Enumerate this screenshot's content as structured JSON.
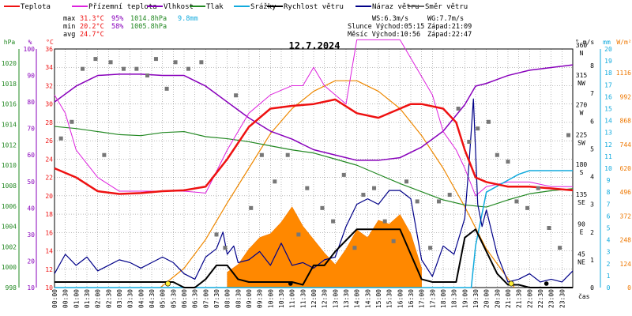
{
  "chart_data": {
    "type": "line",
    "title": "12.7.2024",
    "legend": [
      {
        "label": "Teplota",
        "color": "#ee1111"
      },
      {
        "label": "Přízemní teplota",
        "color": "#dd22dd"
      },
      {
        "label": "Vlhkost",
        "color": "#8800bb"
      },
      {
        "label": "Tlak",
        "color": "#228822"
      },
      {
        "label": "Srážky",
        "color": "#11aadd"
      },
      {
        "label": "Rychlost větru",
        "color": "#000000"
      },
      {
        "label": "Náraz větru",
        "color": "#000088"
      },
      {
        "label": "Směr větru",
        "color": "#666666"
      }
    ],
    "stats": {
      "max_label": "max",
      "max_temp": "31.3°C",
      "max_hum": "95%",
      "max_press": "1014.8hPa",
      "max_rain": "9.8mm",
      "min_label": "min",
      "min_temp": "20.2°C",
      "min_hum": "58%",
      "min_press": "1005.8hPa",
      "avg_label": "avg",
      "avg_temp": "24.7°C",
      "ws": "WS:6.3m/s",
      "wg": "WG:7.7m/s",
      "slunce": "Slunce Východ:05:15",
      "slunce_z": "Západ:21:09",
      "mesic": "Měsíc  Východ:10:56",
      "mesic_z": "Západ:22:47"
    },
    "axes": {
      "hpa": {
        "unit": "hPa",
        "color": "#228822",
        "ticks": [
          "1020",
          "1018",
          "1016",
          "1014",
          "1012",
          "1010",
          "1008",
          "1006",
          "1004",
          "1002",
          "1000",
          "998"
        ],
        "range": [
          998,
          1021.4
        ]
      },
      "pct": {
        "unit": "%",
        "color": "#8800bb",
        "ticks": [
          "100",
          "90",
          "80",
          "70",
          "60",
          "50",
          "40",
          "30",
          "20",
          "10"
        ],
        "range": [
          10,
          100
        ]
      },
      "temp": {
        "unit": "°C",
        "color": "#ee1111",
        "ticks": [
          "36",
          "34",
          "32",
          "30",
          "28",
          "26",
          "24",
          "22",
          "20",
          "18",
          "16",
          "14",
          "12",
          "10"
        ],
        "range": [
          10,
          36
        ]
      },
      "dir": {
        "unit": "°",
        "ticks": [
          "360",
          "N",
          "315",
          "NW",
          "270",
          "W",
          "225",
          "SW",
          "180",
          "S",
          "135",
          "SE",
          "90",
          "E",
          "45",
          "NE"
        ],
        "range": [
          0,
          360
        ]
      },
      "ms": {
        "unit": "m/s",
        "ticks": [
          "8",
          "7",
          "6",
          "5",
          "4",
          "3",
          "2",
          "1",
          "0"
        ],
        "range": [
          0,
          8.6
        ]
      },
      "mm": {
        "unit": "mm",
        "color": "#11aadd",
        "ticks": [
          "20",
          "19",
          "18",
          "17",
          "16",
          "15",
          "14",
          "13",
          "12",
          "11",
          "10",
          "9",
          "8",
          "7",
          "6",
          "5",
          "4",
          "3",
          "2",
          "1",
          "0"
        ],
        "range": [
          0,
          20
        ]
      },
      "wm2": {
        "unit": "W/m²",
        "color": "#ee7700",
        "ticks": [
          "1116",
          "992",
          "868",
          "744",
          "620",
          "496",
          "372",
          "248",
          "124",
          "0"
        ],
        "range": [
          0,
          1240
        ]
      },
      "x": {
        "label": "čas",
        "ticks": [
          "00:00",
          "00:30",
          "01:00",
          "01:30",
          "02:00",
          "02:30",
          "03:00",
          "03:30",
          "04:00",
          "04:30",
          "05:00",
          "05:30",
          "06:00",
          "06:30",
          "07:00",
          "07:30",
          "08:00",
          "08:30",
          "09:00",
          "09:30",
          "10:00",
          "10:30",
          "11:00",
          "11:30",
          "12:00",
          "12:30",
          "13:00",
          "13:30",
          "14:00",
          "14:30",
          "15:00",
          "15:30",
          "16:00",
          "16:30",
          "17:00",
          "17:30",
          "18:00",
          "18:30",
          "19:00",
          "19:30",
          "20:00",
          "20:30",
          "21:00",
          "21:30",
          "22:00",
          "22:30",
          "23:00",
          "23:30"
        ]
      }
    },
    "series": {
      "teplota": {
        "x": [
          0,
          1,
          2,
          3,
          4,
          5,
          6,
          7,
          7.5,
          8,
          9,
          10,
          11,
          12,
          13,
          14,
          15,
          16,
          16.5,
          17,
          18,
          18.6,
          19,
          19.5,
          20,
          21,
          22,
          23,
          24
        ],
        "y": [
          23,
          22,
          20.5,
          20.2,
          20.3,
          20.5,
          20.6,
          21,
          22.5,
          24,
          27.5,
          29.5,
          29.8,
          30,
          30.5,
          29,
          28.5,
          29.5,
          30,
          30,
          29.5,
          28,
          25,
          22,
          21.5,
          21,
          21,
          20.8,
          20.6
        ]
      },
      "prizemni": {
        "x": [
          0,
          0.5,
          1,
          2,
          3,
          4,
          5,
          6,
          7,
          8,
          9,
          10,
          11,
          11.5,
          12,
          12.5,
          13,
          13.5,
          14,
          15,
          16,
          17,
          17.5,
          18,
          18.6,
          19,
          19.5,
          20,
          21,
          22,
          23,
          24
        ],
        "y": [
          31,
          29,
          25,
          22,
          20.5,
          20.5,
          20.5,
          20.5,
          20.3,
          25,
          29,
          31,
          32,
          32,
          34,
          32,
          31,
          30,
          37,
          37,
          37,
          33,
          31,
          27,
          25,
          23,
          20,
          21,
          21.5,
          21.5,
          21,
          21
        ]
      },
      "vlhkost": {
        "x": [
          0,
          1,
          2,
          3,
          4,
          5,
          6,
          7,
          8,
          9,
          10,
          11,
          12,
          13,
          14,
          15,
          16,
          17,
          18,
          19,
          19.5,
          20,
          21,
          22,
          23,
          24
        ],
        "y": [
          80,
          86,
          90,
          90.5,
          90.5,
          90,
          90,
          86,
          80,
          74,
          69,
          66,
          62,
          60,
          58,
          58,
          59,
          63,
          69,
          79,
          86,
          87,
          90,
          92,
          93,
          94
        ]
      },
      "tlak": {
        "x": [
          0,
          1,
          2,
          3,
          4,
          5,
          6,
          7,
          8,
          9,
          10,
          11,
          12,
          13,
          14,
          15,
          16,
          17,
          18,
          19,
          20,
          21,
          22,
          23,
          24
        ],
        "y": [
          1013.8,
          1013.6,
          1013.3,
          1013.0,
          1012.9,
          1013.2,
          1013.3,
          1012.8,
          1012.6,
          1012.3,
          1011.9,
          1011.5,
          1011.2,
          1010.6,
          1010,
          1009.1,
          1008.2,
          1007.4,
          1006.6,
          1006.1,
          1005.9,
          1006.6,
          1007.2,
          1007.5,
          1007.7
        ]
      },
      "srazky": {
        "x": [
          0,
          19.3,
          19.5,
          20,
          21,
          21.5,
          22,
          24
        ],
        "y": [
          0,
          0,
          3.5,
          8,
          9,
          9.5,
          9.8,
          9.8
        ]
      },
      "rychlost": {
        "x": [
          0,
          5.5,
          6,
          6.5,
          7,
          7.5,
          8,
          8.5,
          9,
          10,
          11,
          11.5,
          12,
          12.5,
          13,
          14,
          15,
          16,
          17,
          17.5,
          18,
          18.6,
          19,
          19.5,
          20,
          20.5,
          21,
          21.5,
          22,
          24
        ],
        "y": [
          0.2,
          0.2,
          0,
          0,
          0.3,
          0.8,
          0.8,
          0.3,
          0.2,
          0.2,
          0.2,
          0.1,
          0.8,
          0.8,
          1.3,
          2.1,
          2.1,
          2.1,
          0.3,
          0.2,
          0.2,
          0.2,
          1.8,
          2.1,
          1.3,
          0.5,
          0.1,
          0.1,
          0,
          0
        ]
      },
      "naraz": {
        "x": [
          0,
          0.5,
          1,
          1.5,
          2,
          2.5,
          3,
          3.5,
          4,
          4.5,
          5,
          5.5,
          6,
          6.5,
          7,
          7.5,
          7.8,
          8,
          8.3,
          8.5,
          9,
          9.5,
          10,
          10.5,
          11,
          11.5,
          12,
          12.5,
          13,
          13.5,
          14,
          14.5,
          15,
          15.5,
          16,
          16.5,
          17,
          17.5,
          18,
          18.5,
          19,
          19.2,
          19.4,
          19.6,
          19.8,
          20,
          20.5,
          21,
          21.5,
          22,
          22.5,
          23,
          23.5,
          24
        ],
        "y": [
          0.5,
          1.2,
          0.8,
          1.1,
          0.6,
          0.8,
          1.0,
          0.9,
          0.7,
          0.9,
          1.1,
          0.9,
          0.5,
          0.3,
          1.1,
          1.4,
          2.0,
          1.2,
          1.5,
          0.9,
          1.0,
          1.3,
          0.8,
          1.6,
          0.8,
          0.9,
          0.7,
          1.0,
          1.1,
          2.2,
          3.0,
          3.2,
          3.0,
          3.5,
          3.5,
          3.2,
          1.0,
          0.4,
          1.5,
          1.2,
          2.5,
          4.5,
          6.8,
          3.0,
          2.2,
          2.8,
          1.2,
          0.2,
          0.3,
          0.5,
          0.2,
          0.3,
          0.2,
          0.6
        ]
      },
      "smer": {
        "x": [
          0.3,
          0.8,
          1.3,
          1.9,
          2.3,
          2.6,
          3.2,
          3.8,
          4.3,
          4.7,
          5.2,
          5.6,
          6.2,
          6.8,
          7.5,
          7.9,
          8.4,
          9.1,
          9.6,
          10.2,
          10.8,
          11.3,
          11.7,
          12.4,
          12.9,
          13.4,
          13.9,
          14.3,
          14.8,
          15.3,
          15.7,
          16.3,
          16.8,
          17.4,
          17.8,
          18.3,
          18.7,
          19.2,
          19.6,
          20.1,
          20.5,
          21,
          21.4,
          21.9,
          22.4,
          22.9,
          23.4,
          23.8
        ],
        "y": [
          225,
          250,
          330,
          345,
          200,
          340,
          330,
          330,
          320,
          345,
          300,
          340,
          330,
          340,
          80,
          60,
          290,
          120,
          200,
          160,
          200,
          80,
          150,
          120,
          100,
          170,
          60,
          140,
          150,
          100,
          70,
          160,
          130,
          60,
          130,
          140,
          270,
          220,
          240,
          250,
          200,
          190,
          130,
          120,
          150,
          90,
          60,
          230
        ]
      },
      "solar": {
        "x": [
          4.9,
          6,
          7,
          8,
          9,
          10,
          11,
          12,
          13,
          14,
          15,
          16,
          17,
          18,
          19,
          20,
          21.3
        ],
        "y": [
          0,
          100,
          250,
          440,
          620,
          800,
          930,
          1020,
          1075,
          1075,
          1020,
          930,
          790,
          620,
          420,
          200,
          0
        ]
      },
      "solar_fill": {
        "x": [
          8,
          8.5,
          9,
          9.5,
          10,
          10.5,
          11,
          11.5,
          12,
          12.5,
          13,
          13.5,
          14,
          14.5,
          15,
          15.5,
          16,
          16.5,
          17
        ],
        "y": [
          80,
          120,
          200,
          260,
          280,
          340,
          420,
          320,
          250,
          180,
          120,
          200,
          300,
          260,
          350,
          330,
          380,
          280,
          100
        ]
      }
    }
  }
}
